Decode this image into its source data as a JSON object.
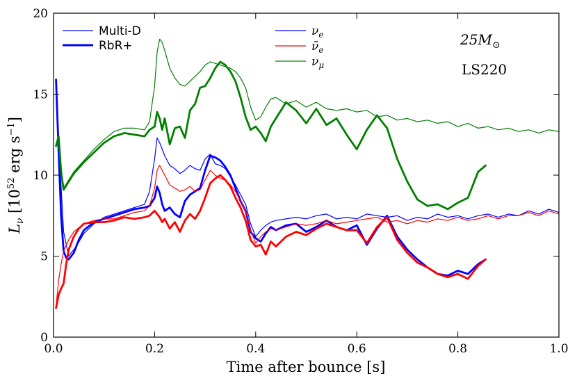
{
  "chart_data": {
    "type": "line",
    "title": "",
    "xlabel": "Time after bounce [s]",
    "ylabel_main": "L",
    "ylabel_sub": "ν",
    "ylabel_units_a": " [10",
    "ylabel_units_exp": "52",
    "ylabel_units_b": " erg s",
    "ylabel_units_exp2": "−1",
    "ylabel_units_c": "]",
    "xlim": [
      0.0,
      1.0
    ],
    "ylim": [
      0,
      20
    ],
    "x_ticks": [
      0.0,
      0.2,
      0.4,
      0.6,
      0.8,
      1.0
    ],
    "x_tick_labels": [
      "0.0",
      "0.2",
      "0.4",
      "0.6",
      "0.8",
      "1.0"
    ],
    "y_ticks": [
      0,
      5,
      10,
      15,
      20
    ],
    "y_tick_labels": [
      "0",
      "5",
      "10",
      "15",
      "20"
    ],
    "annotations": {
      "mass_main": "25M",
      "mass_sub": "⊙",
      "eos": "LS220"
    },
    "legend_style": [
      {
        "label": "Multi-D",
        "linewidth": "thin"
      },
      {
        "label": "RbR+",
        "linewidth": "thick"
      }
    ],
    "legend_species": [
      {
        "label": "ν",
        "sub": "e",
        "color": "#0000ff"
      },
      {
        "label": "ν̄",
        "sub": "e",
        "color": "#ff0000"
      },
      {
        "label": "ν",
        "sub": "μ",
        "color": "#008000"
      }
    ],
    "series": [
      {
        "name": "νe Multi-D",
        "color": "#0000ff",
        "style": "thin",
        "x": [
          0.005,
          0.012,
          0.02,
          0.03,
          0.045,
          0.06,
          0.08,
          0.1,
          0.12,
          0.14,
          0.16,
          0.18,
          0.19,
          0.2,
          0.205,
          0.21,
          0.22,
          0.23,
          0.24,
          0.25,
          0.26,
          0.27,
          0.28,
          0.29,
          0.3,
          0.31,
          0.32,
          0.33,
          0.34,
          0.35,
          0.36,
          0.37,
          0.38,
          0.39,
          0.4,
          0.41,
          0.42,
          0.43,
          0.44,
          0.46,
          0.48,
          0.5,
          0.52,
          0.54,
          0.56,
          0.58,
          0.6,
          0.62,
          0.64,
          0.66,
          0.68,
          0.7,
          0.72,
          0.74,
          0.76,
          0.78,
          0.8,
          0.82,
          0.84,
          0.86,
          0.88,
          0.9,
          0.92,
          0.94,
          0.96,
          0.98,
          1.0
        ],
        "y": [
          15.8,
          11.0,
          6.5,
          5.0,
          5.6,
          6.4,
          7.0,
          7.4,
          7.6,
          7.8,
          8.0,
          8.2,
          9.0,
          11.0,
          12.3,
          12.0,
          11.2,
          10.6,
          10.4,
          10.1,
          10.3,
          10.6,
          10.4,
          10.3,
          11.0,
          11.3,
          10.7,
          10.6,
          10.4,
          9.9,
          9.4,
          8.8,
          8.2,
          7.0,
          6.2,
          6.6,
          6.9,
          7.1,
          7.2,
          7.3,
          7.4,
          7.3,
          7.5,
          7.6,
          7.3,
          7.4,
          7.3,
          7.6,
          7.5,
          7.4,
          7.5,
          7.2,
          7.4,
          7.3,
          7.6,
          7.4,
          7.5,
          7.3,
          7.5,
          7.6,
          7.4,
          7.6,
          7.5,
          7.8,
          7.6,
          7.9,
          7.7
        ]
      },
      {
        "name": "νe RbR+",
        "color": "#0000ff",
        "style": "thick",
        "x": [
          0.005,
          0.01,
          0.015,
          0.02,
          0.025,
          0.03,
          0.04,
          0.05,
          0.06,
          0.08,
          0.1,
          0.12,
          0.14,
          0.16,
          0.18,
          0.19,
          0.2,
          0.205,
          0.21,
          0.215,
          0.22,
          0.23,
          0.24,
          0.25,
          0.26,
          0.27,
          0.28,
          0.29,
          0.3,
          0.31,
          0.32,
          0.33,
          0.34,
          0.35,
          0.36,
          0.37,
          0.38,
          0.39,
          0.4,
          0.41,
          0.42,
          0.43,
          0.44,
          0.46,
          0.48,
          0.5,
          0.52,
          0.54,
          0.56,
          0.58,
          0.6,
          0.62,
          0.64,
          0.66,
          0.68,
          0.7,
          0.72,
          0.74,
          0.76,
          0.78,
          0.8,
          0.82,
          0.84,
          0.855
        ],
        "y": [
          15.9,
          11.5,
          7.5,
          5.3,
          4.9,
          4.8,
          5.2,
          6.0,
          6.6,
          7.1,
          7.3,
          7.5,
          7.7,
          7.9,
          8.0,
          8.1,
          8.6,
          9.3,
          8.9,
          8.2,
          7.8,
          8.0,
          7.6,
          7.4,
          8.4,
          8.8,
          9.0,
          9.2,
          10.3,
          11.2,
          11.1,
          10.9,
          10.5,
          10.0,
          9.2,
          8.4,
          7.8,
          6.5,
          6.1,
          5.9,
          6.4,
          6.8,
          6.6,
          6.9,
          7.0,
          6.5,
          6.8,
          7.2,
          6.8,
          6.6,
          6.9,
          5.7,
          6.7,
          7.5,
          6.2,
          5.4,
          4.8,
          4.3,
          3.9,
          3.8,
          4.1,
          3.9,
          4.5,
          4.8
        ]
      },
      {
        "name": "ν̄e Multi-D",
        "color": "#ff0000",
        "style": "thin",
        "x": [
          0.005,
          0.01,
          0.015,
          0.02,
          0.03,
          0.04,
          0.06,
          0.08,
          0.1,
          0.12,
          0.14,
          0.16,
          0.18,
          0.19,
          0.2,
          0.205,
          0.21,
          0.22,
          0.23,
          0.24,
          0.25,
          0.26,
          0.27,
          0.28,
          0.29,
          0.3,
          0.31,
          0.32,
          0.33,
          0.34,
          0.35,
          0.36,
          0.37,
          0.38,
          0.39,
          0.4,
          0.41,
          0.42,
          0.43,
          0.44,
          0.46,
          0.48,
          0.5,
          0.52,
          0.54,
          0.56,
          0.58,
          0.6,
          0.62,
          0.64,
          0.66,
          0.68,
          0.7,
          0.72,
          0.74,
          0.76,
          0.78,
          0.8,
          0.82,
          0.84,
          0.86,
          0.88,
          0.9,
          0.92,
          0.94,
          0.96,
          0.98,
          1.0
        ],
        "y": [
          1.9,
          3.5,
          4.5,
          5.3,
          6.0,
          6.5,
          7.0,
          7.2,
          7.3,
          7.3,
          7.5,
          7.7,
          7.8,
          8.1,
          9.2,
          10.3,
          10.6,
          10.0,
          9.4,
          9.2,
          9.0,
          9.1,
          9.3,
          9.0,
          9.1,
          9.7,
          10.3,
          10.0,
          9.8,
          9.7,
          9.4,
          9.0,
          8.4,
          7.8,
          6.6,
          5.8,
          6.2,
          6.5,
          6.7,
          6.6,
          6.8,
          7.0,
          6.9,
          7.0,
          7.2,
          7.0,
          7.1,
          7.2,
          7.3,
          7.4,
          7.1,
          7.2,
          7.0,
          7.2,
          7.1,
          7.3,
          7.2,
          7.4,
          7.2,
          7.3,
          7.5,
          7.3,
          7.5,
          7.5,
          7.7,
          7.5,
          7.8,
          7.6
        ]
      },
      {
        "name": "ν̄e RbR+",
        "color": "#ff0000",
        "style": "thick",
        "x": [
          0.005,
          0.01,
          0.015,
          0.02,
          0.025,
          0.03,
          0.04,
          0.05,
          0.06,
          0.08,
          0.1,
          0.12,
          0.14,
          0.16,
          0.18,
          0.19,
          0.2,
          0.205,
          0.21,
          0.215,
          0.22,
          0.23,
          0.24,
          0.25,
          0.26,
          0.27,
          0.28,
          0.29,
          0.3,
          0.31,
          0.32,
          0.33,
          0.34,
          0.35,
          0.36,
          0.37,
          0.38,
          0.39,
          0.4,
          0.41,
          0.42,
          0.43,
          0.44,
          0.46,
          0.48,
          0.5,
          0.52,
          0.54,
          0.56,
          0.58,
          0.6,
          0.62,
          0.64,
          0.66,
          0.68,
          0.7,
          0.72,
          0.74,
          0.76,
          0.78,
          0.8,
          0.82,
          0.84,
          0.855
        ],
        "y": [
          1.8,
          2.6,
          3.0,
          3.3,
          4.5,
          5.4,
          6.2,
          6.7,
          7.0,
          7.1,
          7.1,
          7.2,
          7.4,
          7.3,
          7.4,
          7.5,
          7.8,
          7.6,
          7.4,
          7.1,
          7.3,
          6.7,
          7.1,
          6.5,
          7.2,
          7.6,
          7.3,
          7.8,
          8.6,
          9.5,
          9.8,
          10.0,
          9.7,
          9.3,
          8.6,
          8.0,
          7.2,
          6.0,
          5.6,
          5.7,
          5.1,
          5.9,
          5.6,
          6.2,
          6.5,
          6.3,
          6.7,
          7.0,
          6.8,
          6.6,
          6.6,
          5.8,
          6.8,
          7.4,
          6.0,
          5.2,
          4.6,
          4.3,
          3.9,
          3.7,
          3.9,
          3.6,
          4.4,
          4.8
        ]
      },
      {
        "name": "νμ Multi-D",
        "color": "#008000",
        "style": "thin",
        "x": [
          0.005,
          0.01,
          0.015,
          0.02,
          0.03,
          0.04,
          0.06,
          0.08,
          0.1,
          0.12,
          0.14,
          0.16,
          0.18,
          0.19,
          0.2,
          0.205,
          0.21,
          0.215,
          0.22,
          0.23,
          0.24,
          0.25,
          0.26,
          0.27,
          0.28,
          0.29,
          0.3,
          0.31,
          0.32,
          0.33,
          0.34,
          0.35,
          0.36,
          0.37,
          0.38,
          0.39,
          0.4,
          0.41,
          0.42,
          0.43,
          0.44,
          0.46,
          0.48,
          0.5,
          0.52,
          0.54,
          0.56,
          0.58,
          0.6,
          0.62,
          0.64,
          0.66,
          0.68,
          0.7,
          0.72,
          0.74,
          0.76,
          0.78,
          0.8,
          0.82,
          0.84,
          0.86,
          0.88,
          0.9,
          0.92,
          0.94,
          0.96,
          0.98,
          1.0
        ],
        "y": [
          11.9,
          12.2,
          10.5,
          9.2,
          9.7,
          10.2,
          10.9,
          11.6,
          12.2,
          12.7,
          12.9,
          12.9,
          12.8,
          13.3,
          15.5,
          17.6,
          18.4,
          18.2,
          17.7,
          16.6,
          16.0,
          15.6,
          15.5,
          15.8,
          16.1,
          16.4,
          16.8,
          17.0,
          16.9,
          16.8,
          16.7,
          16.6,
          16.4,
          16.0,
          15.4,
          14.2,
          13.4,
          13.6,
          14.2,
          14.7,
          14.8,
          14.4,
          14.6,
          14.2,
          14.5,
          14.1,
          14.0,
          14.1,
          13.9,
          14.0,
          13.6,
          13.7,
          13.4,
          13.5,
          13.3,
          13.4,
          13.2,
          13.3,
          13.0,
          13.2,
          12.9,
          13.0,
          12.8,
          12.9,
          12.7,
          12.8,
          12.6,
          12.8,
          12.7
        ]
      },
      {
        "name": "νμ RbR+",
        "color": "#008000",
        "style": "thick",
        "x": [
          0.005,
          0.01,
          0.015,
          0.02,
          0.03,
          0.04,
          0.06,
          0.08,
          0.1,
          0.12,
          0.14,
          0.16,
          0.18,
          0.19,
          0.2,
          0.205,
          0.21,
          0.215,
          0.22,
          0.23,
          0.24,
          0.25,
          0.26,
          0.27,
          0.28,
          0.29,
          0.3,
          0.31,
          0.32,
          0.33,
          0.34,
          0.35,
          0.36,
          0.37,
          0.38,
          0.39,
          0.4,
          0.41,
          0.42,
          0.43,
          0.44,
          0.46,
          0.48,
          0.5,
          0.52,
          0.54,
          0.56,
          0.58,
          0.6,
          0.62,
          0.64,
          0.66,
          0.68,
          0.7,
          0.72,
          0.74,
          0.76,
          0.78,
          0.8,
          0.82,
          0.84,
          0.855
        ],
        "y": [
          11.8,
          12.4,
          10.2,
          9.1,
          9.6,
          10.1,
          10.8,
          11.4,
          12.0,
          12.4,
          12.6,
          12.5,
          12.4,
          12.8,
          13.0,
          13.9,
          13.5,
          12.8,
          13.5,
          11.9,
          12.9,
          13.0,
          12.3,
          14.0,
          14.4,
          15.4,
          15.5,
          16.0,
          16.6,
          17.0,
          16.8,
          16.4,
          15.8,
          14.8,
          13.6,
          12.8,
          13.0,
          12.6,
          12.1,
          13.0,
          13.5,
          14.5,
          14.0,
          13.2,
          14.1,
          13.1,
          13.5,
          12.5,
          11.6,
          12.8,
          13.7,
          12.9,
          11.0,
          9.6,
          8.5,
          8.1,
          8.2,
          7.9,
          8.3,
          8.6,
          10.2,
          10.6
        ]
      }
    ]
  }
}
